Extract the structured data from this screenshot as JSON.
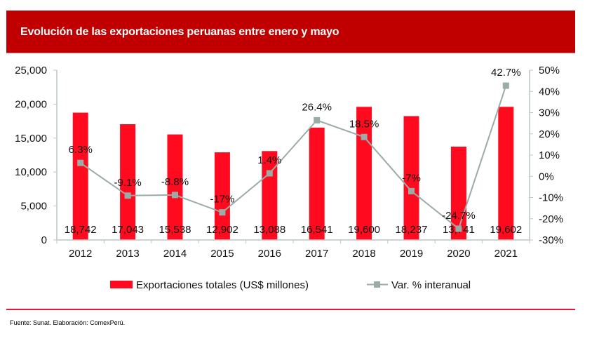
{
  "header": {
    "title": "Evolución de las exportaciones peruanas entre enero y mayo"
  },
  "footer": {
    "source": "Fuente: Sunat. Elaboración: ComexPerú."
  },
  "colors": {
    "title_bg": "#c00000",
    "bar": "#ff0a1e",
    "line": "#9aaba8",
    "divider": "#e0163c",
    "axis": "#bcc6c4"
  },
  "chart_data": {
    "type": "bar",
    "title": "Evolución de las exportaciones peruanas entre enero y mayo",
    "categories": [
      "2012",
      "2013",
      "2014",
      "2015",
      "2016",
      "2017",
      "2018",
      "2019",
      "2020",
      "2021"
    ],
    "series": [
      {
        "name": "Exportaciones totales (US$ millones)",
        "type": "bar",
        "axis": "left",
        "values": [
          18742,
          17043,
          15538,
          12902,
          13088,
          16541,
          19600,
          18237,
          13741,
          19602
        ],
        "labels": [
          "18,742",
          "17,043",
          "15,538",
          "12,902",
          "13,088",
          "16,541",
          "19,600",
          "18,237",
          "13,741",
          "19,602"
        ]
      },
      {
        "name": "Var. % interanual",
        "type": "line",
        "axis": "right",
        "values": [
          6.3,
          -9.1,
          -8.8,
          -17,
          1.4,
          26.4,
          18.5,
          -7,
          -24.7,
          42.7
        ],
        "labels": [
          "6.3%",
          "-9.1%",
          "-8.8%",
          "-17%",
          "1.4%",
          "26.4%",
          "18.5%",
          "-7%",
          "-24.7%",
          "42.7%"
        ]
      }
    ],
    "y_left": {
      "range": [
        0,
        25000
      ],
      "ticks": [
        0,
        5000,
        10000,
        15000,
        20000,
        25000
      ],
      "tick_labels": [
        "0",
        "5,000",
        "10,000",
        "15,000",
        "20,000",
        "25,000"
      ]
    },
    "y_right": {
      "range": [
        -30,
        50
      ],
      "ticks": [
        -30,
        -20,
        -10,
        0,
        10,
        20,
        30,
        40,
        50
      ],
      "tick_labels": [
        "-30%",
        "-20%",
        "-10%",
        "0%",
        "10%",
        "20%",
        "30%",
        "40%",
        "50%"
      ]
    },
    "xlabel": "",
    "ylabel": "",
    "grid": false,
    "legend": {
      "position": "bottom",
      "entries": [
        "Exportaciones totales (US$ millones)",
        "Var. % interanual"
      ]
    }
  }
}
